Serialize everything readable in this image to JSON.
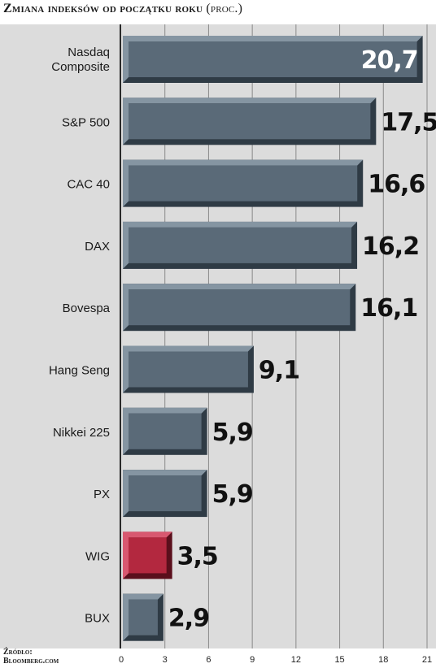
{
  "title": {
    "main": "Zmiana indeksów od początku roku",
    "unit": "(proc.)"
  },
  "source": {
    "label": "Źródło:",
    "name": "Bloomberg.com"
  },
  "colors": {
    "bar": "#5a6a78",
    "bar_highlight": "#b3283f",
    "background": "#dcdcdc"
  },
  "chart_data": {
    "type": "bar",
    "orientation": "horizontal",
    "categories": [
      "Nasdaq Composite",
      "S&P 500",
      "CAC 40",
      "DAX",
      "Bovespa",
      "Hang Seng",
      "Nikkei 225",
      "PX",
      "WIG",
      "BUX"
    ],
    "values": [
      20.7,
      17.5,
      16.6,
      16.2,
      16.1,
      9.1,
      5.9,
      5.9,
      3.5,
      2.9
    ],
    "value_labels": [
      "20,7",
      "17,5",
      "16,6",
      "16,2",
      "16,1",
      "9,1",
      "5,9",
      "5,9",
      "3,5",
      "2,9"
    ],
    "highlight": "WIG",
    "xlim": [
      0,
      21
    ],
    "xticks": [
      0,
      3,
      6,
      9,
      12,
      15,
      18,
      21
    ],
    "grid": true
  }
}
